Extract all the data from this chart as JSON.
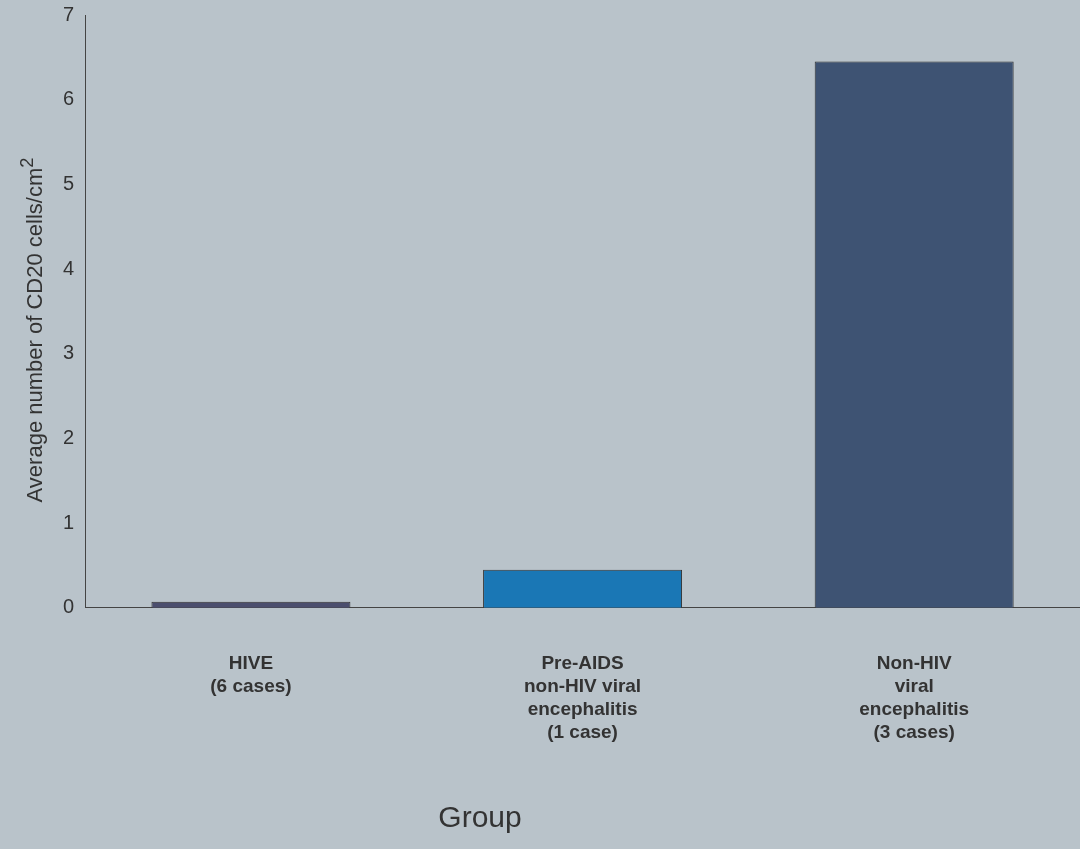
{
  "chart_data": {
    "type": "bar",
    "xlabel": "Group",
    "ylabel": "Average number of CD20 cells/cm$^{2}$",
    "categories": [
      "HIVE\n(6 cases)",
      "Pre-AIDS\nnon-HIV viral\nencephalitis\n(1 case)",
      "Non-HIV\nviral\nencephalitis\n(3 cases)"
    ],
    "values": [
      0.07,
      0.45,
      6.45
    ],
    "colors": [
      "#4b4e6e",
      "#1a77b5",
      "#3e5373"
    ],
    "ylim": [
      0,
      7
    ],
    "yticks": [
      0,
      1,
      2,
      3,
      4,
      5,
      6,
      7
    ],
    "grid": false,
    "legend": false
  }
}
